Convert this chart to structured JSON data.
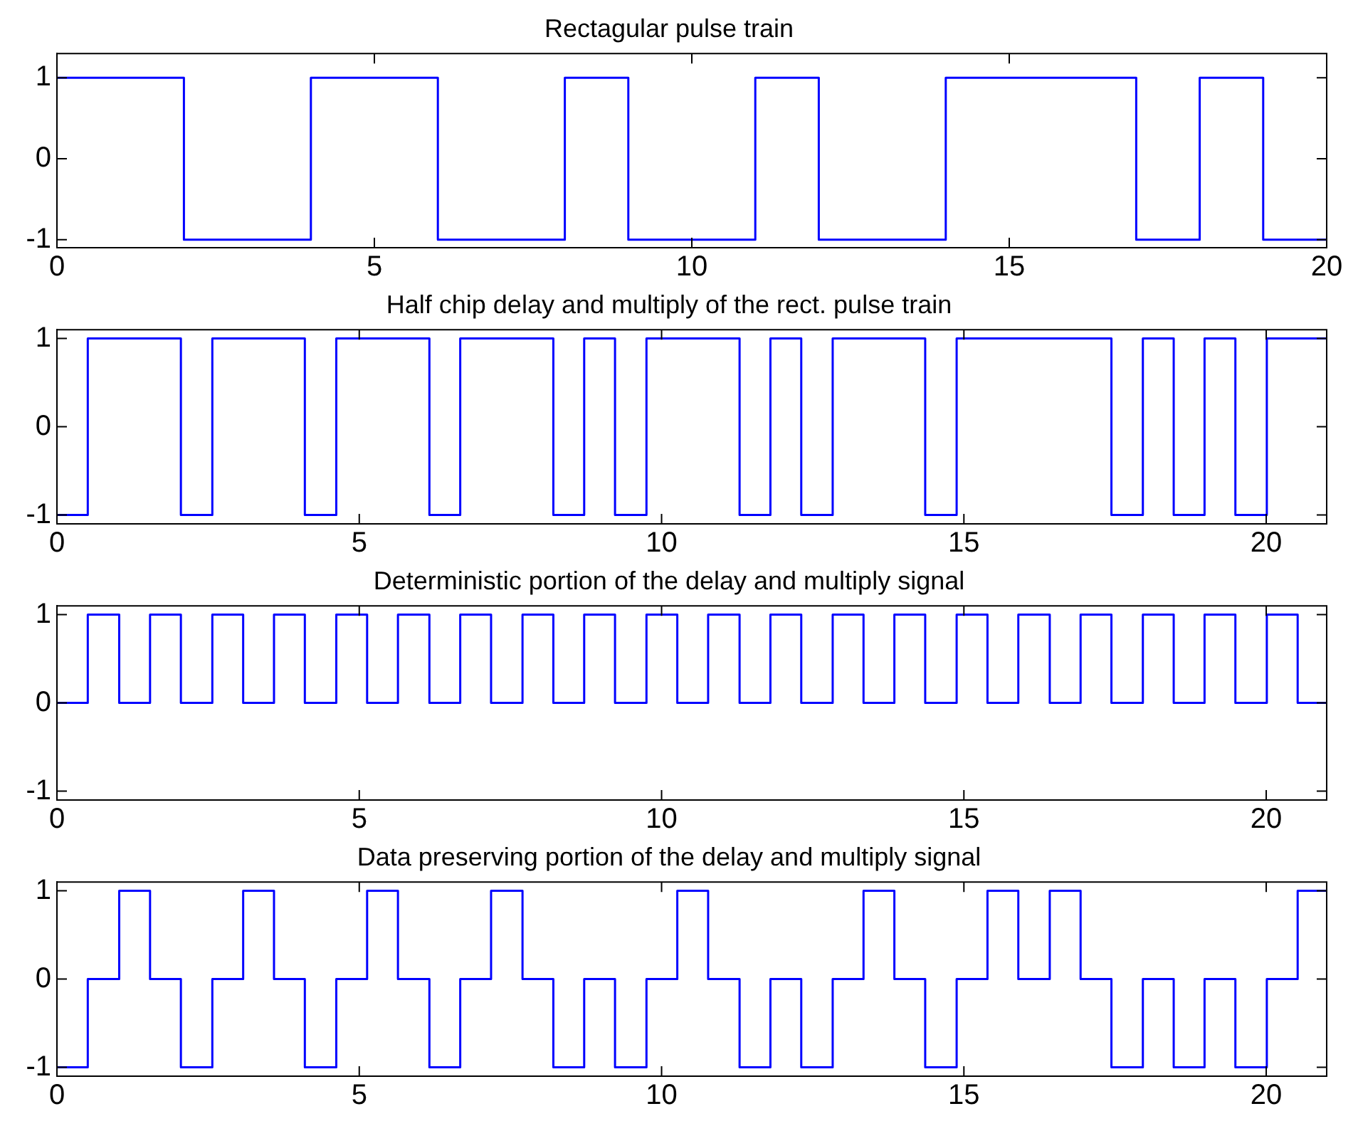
{
  "chart_data": [
    {
      "type": "step",
      "title": "Rectagular pulse train",
      "color": "#0000ff",
      "grid": false,
      "x": [
        0,
        2,
        4,
        6,
        8,
        9,
        11,
        12,
        14,
        17,
        18,
        19,
        20
      ],
      "values": [
        1,
        -1,
        1,
        -1,
        1,
        -1,
        1,
        -1,
        1,
        -1,
        1,
        -1,
        -1
      ],
      "xlim": [
        0,
        20
      ],
      "xticks": [
        0,
        5,
        10,
        15,
        20
      ],
      "ylim": [
        -1.1,
        1.3
      ],
      "yticks": [
        -1,
        0,
        1
      ]
    },
    {
      "type": "step",
      "title": "Half chip delay and multiply of the rect. pulse train",
      "color": "#0000ff",
      "grid": false,
      "x": [
        0,
        0.51,
        1.03,
        1.54,
        2.05,
        2.57,
        3.08,
        3.59,
        4.1,
        4.62,
        5.13,
        5.64,
        6.16,
        6.67,
        7.18,
        7.7,
        8.21,
        8.72,
        9.23,
        9.75,
        10.26,
        10.77,
        11.29,
        11.8,
        12.31,
        12.83,
        13.34,
        13.85,
        14.36,
        14.88,
        15.39,
        15.9,
        16.42,
        16.93,
        17.44,
        17.96,
        18.47,
        18.98,
        19.49,
        20.01,
        20.52,
        21
      ],
      "values": [
        -1,
        1,
        1,
        1,
        -1,
        1,
        1,
        1,
        -1,
        1,
        1,
        1,
        -1,
        1,
        1,
        1,
        -1,
        1,
        -1,
        1,
        1,
        1,
        -1,
        1,
        -1,
        1,
        1,
        1,
        -1,
        1,
        1,
        1,
        1,
        1,
        -1,
        1,
        -1,
        1,
        -1,
        1,
        1,
        1
      ],
      "xlim": [
        0,
        21
      ],
      "xticks": [
        0,
        5,
        10,
        15,
        20
      ],
      "ylim": [
        -1.1,
        1.1
      ],
      "yticks": [
        -1,
        0,
        1
      ]
    },
    {
      "type": "step",
      "title": "Deterministic portion of the delay and multiply signal",
      "color": "#0000ff",
      "grid": false,
      "x": [
        0,
        0.51,
        1.03,
        1.54,
        2.05,
        2.57,
        3.08,
        3.59,
        4.1,
        4.62,
        5.13,
        5.64,
        6.16,
        6.67,
        7.18,
        7.7,
        8.21,
        8.72,
        9.23,
        9.75,
        10.26,
        10.77,
        11.29,
        11.8,
        12.31,
        12.83,
        13.34,
        13.85,
        14.36,
        14.88,
        15.39,
        15.9,
        16.42,
        16.93,
        17.44,
        17.96,
        18.47,
        18.98,
        19.49,
        20.01,
        20.52,
        21
      ],
      "values": [
        0,
        1,
        0,
        1,
        0,
        1,
        0,
        1,
        0,
        1,
        0,
        1,
        0,
        1,
        0,
        1,
        0,
        1,
        0,
        1,
        0,
        1,
        0,
        1,
        0,
        1,
        0,
        1,
        0,
        1,
        0,
        1,
        0,
        1,
        0,
        1,
        0,
        1,
        0,
        1,
        0,
        0
      ],
      "xlim": [
        0,
        21
      ],
      "xticks": [
        0,
        5,
        10,
        15,
        20
      ],
      "ylim": [
        -1.1,
        1.1
      ],
      "yticks": [
        -1,
        0,
        1
      ]
    },
    {
      "type": "step",
      "title": "Data preserving portion of the delay and multiply signal",
      "color": "#0000ff",
      "grid": false,
      "x": [
        0,
        0.51,
        1.03,
        1.54,
        2.05,
        2.57,
        3.08,
        3.59,
        4.1,
        4.62,
        5.13,
        5.64,
        6.16,
        6.67,
        7.18,
        7.7,
        8.21,
        8.72,
        9.23,
        9.75,
        10.26,
        10.77,
        11.29,
        11.8,
        12.31,
        12.83,
        13.34,
        13.85,
        14.36,
        14.88,
        15.39,
        15.9,
        16.42,
        16.93,
        17.44,
        17.96,
        18.47,
        18.98,
        19.49,
        20.01,
        20.52,
        21
      ],
      "values": [
        -1,
        0,
        1,
        0,
        -1,
        0,
        1,
        0,
        -1,
        0,
        1,
        0,
        -1,
        0,
        1,
        0,
        -1,
        0,
        -1,
        0,
        1,
        0,
        -1,
        0,
        -1,
        0,
        1,
        0,
        -1,
        0,
        1,
        0,
        1,
        0,
        -1,
        0,
        -1,
        0,
        -1,
        0,
        1,
        1
      ],
      "xlim": [
        0,
        21
      ],
      "xticks": [
        0,
        5,
        10,
        15,
        20
      ],
      "ylim": [
        -1.1,
        1.1
      ],
      "yticks": [
        -1,
        0,
        1
      ]
    }
  ]
}
